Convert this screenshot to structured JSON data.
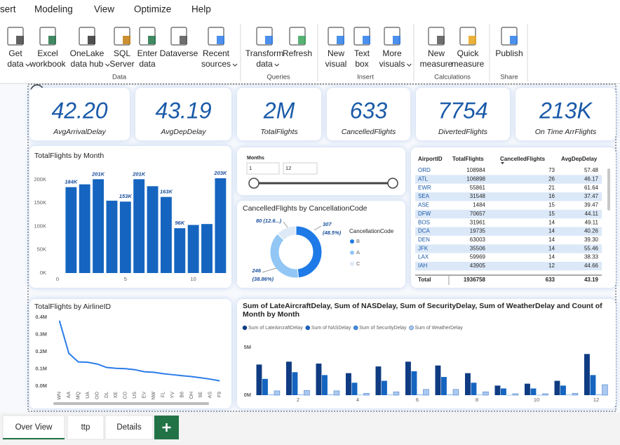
{
  "ribbon": {
    "tabs": [
      "sert",
      "Modeling",
      "View",
      "Optimize",
      "Help"
    ],
    "groups": [
      {
        "label": "Data",
        "buttons": [
          {
            "lines": [
              "Get",
              "data"
            ],
            "dropdown": true
          },
          {
            "lines": [
              "Excel",
              "workbook"
            ],
            "dropdown": false
          },
          {
            "lines": [
              "OneLake",
              "data hub"
            ],
            "dropdown": true
          },
          {
            "lines": [
              "SQL",
              "Server"
            ],
            "dropdown": false
          },
          {
            "lines": [
              "Enter",
              "data"
            ],
            "dropdown": false
          },
          {
            "lines": [
              "Dataverse"
            ],
            "dropdown": false
          },
          {
            "lines": [
              "Recent",
              "sources"
            ],
            "dropdown": true
          }
        ]
      },
      {
        "label": "Queries",
        "buttons": [
          {
            "lines": [
              "Transform",
              "data"
            ],
            "dropdown": true
          },
          {
            "lines": [
              "Refresh"
            ],
            "dropdown": false
          }
        ]
      },
      {
        "label": "Insert",
        "buttons": [
          {
            "lines": [
              "New",
              "visual"
            ],
            "dropdown": false
          },
          {
            "lines": [
              "Text",
              "box"
            ],
            "dropdown": false
          },
          {
            "lines": [
              "More",
              "visuals"
            ],
            "dropdown": true
          }
        ]
      },
      {
        "label": "Calculations",
        "buttons": [
          {
            "lines": [
              "New",
              "measure"
            ],
            "dropdown": false
          },
          {
            "lines": [
              "Quick",
              "measure"
            ],
            "dropdown": false
          }
        ]
      },
      {
        "label": "Share",
        "buttons": [
          {
            "lines": [
              "Publish"
            ],
            "dropdown": false
          }
        ]
      }
    ]
  },
  "cards": [
    {
      "value": "42.20",
      "label": "AvgArrivalDelay"
    },
    {
      "value": "43.19",
      "label": "AvgDepDelay"
    },
    {
      "value": "2M",
      "label": "TotalFlights"
    },
    {
      "value": "633",
      "label": "CancelledFlights"
    },
    {
      "value": "7754",
      "label": "DivertedFlights"
    },
    {
      "value": "213K",
      "label": "On Time ArrFlights"
    }
  ],
  "month_chart": {
    "type": "bar",
    "title": "TotalFlights by Month",
    "x": [
      1,
      2,
      3,
      4,
      5,
      6,
      7,
      8,
      9,
      10,
      11,
      12
    ],
    "values": [
      184000,
      190000,
      201000,
      155000,
      153000,
      201000,
      186000,
      163000,
      96000,
      103000,
      105000,
      203000
    ],
    "value_labels": [
      "184K",
      null,
      "201K",
      null,
      "153K",
      "201K",
      null,
      "163K",
      "96K",
      null,
      null,
      "203K"
    ],
    "color": "#1565c0",
    "xlim": [
      0,
      12.6
    ],
    "xticks": [
      0,
      5,
      10
    ],
    "ylim": [
      0,
      215000
    ],
    "yticks": [
      {
        "value": 0,
        "label": "0K"
      },
      {
        "value": 50000,
        "label": "50K"
      },
      {
        "value": 100000,
        "label": "100K"
      },
      {
        "value": 150000,
        "label": "150K"
      },
      {
        "value": 200000,
        "label": "200K"
      }
    ]
  },
  "slicer": {
    "title": "Months",
    "from": 1,
    "to": 12
  },
  "cancel_chart": {
    "type": "donut",
    "title": "CancelledFlights by CancellationCode",
    "legend_title": "CancellationCode",
    "categories": [
      "B",
      "A",
      "C"
    ],
    "values": [
      307,
      246,
      80
    ],
    "value_labels": [
      "307",
      "246",
      "80 (12.6...)"
    ],
    "percent_labels": [
      "(48.5%)",
      "(38.86%)",
      null
    ],
    "colors": [
      "#1e7ae6",
      "#92c6f5",
      "#dde9f6"
    ]
  },
  "table": {
    "columns": [
      "AirportID",
      "TotalFlights",
      "CancelledFlights",
      "AvgDepDelay"
    ],
    "rows": [
      [
        "ORD",
        "108984",
        "73",
        "57.48"
      ],
      [
        "ATL",
        "106898",
        "26",
        "46.17"
      ],
      [
        "EWR",
        "55861",
        "21",
        "61.64"
      ],
      [
        "SEA",
        "31548",
        "16",
        "37.47"
      ],
      [
        "ASE",
        "1484",
        "15",
        "39.47"
      ],
      [
        "DFW",
        "70657",
        "15",
        "44.11"
      ],
      [
        "BOS",
        "31961",
        "14",
        "49.11"
      ],
      [
        "DCA",
        "19735",
        "14",
        "40.26"
      ],
      [
        "DEN",
        "63003",
        "14",
        "39.30"
      ],
      [
        "JFK",
        "35506",
        "14",
        "55.46"
      ],
      [
        "LAX",
        "59969",
        "14",
        "38.33"
      ],
      [
        "IAH",
        "43905",
        "12",
        "44.66"
      ]
    ],
    "total": [
      "Total",
      "1936758",
      "633",
      "43.19"
    ]
  },
  "airline_chart": {
    "type": "line",
    "title": "TotalFlights by AirlineID",
    "categories": [
      "WN",
      "AA",
      "MQ",
      "UA",
      "OO",
      "DL",
      "XE",
      "CO",
      "US",
      "EV",
      "NW",
      "FL",
      "YV",
      "B6",
      "OH",
      "9E",
      "AS",
      "F9"
    ],
    "values": [
      380000,
      190000,
      140000,
      138000,
      128000,
      108000,
      103000,
      101000,
      95000,
      83000,
      80000,
      72000,
      66000,
      60000,
      55000,
      48000,
      40000,
      30000
    ],
    "color": "#2b7de9",
    "ylim": [
      0,
      420000
    ],
    "yticks": [
      {
        "value": 0,
        "label": "0.0M"
      },
      {
        "value": 100000,
        "label": "0.1M"
      },
      {
        "value": 200000,
        "label": "0.2M"
      },
      {
        "value": 300000,
        "label": "0.3M"
      },
      {
        "value": 400000,
        "label": "0.4M"
      }
    ]
  },
  "delay_chart": {
    "type": "bar",
    "title": "Sum of LateAircraftDelay, Sum of NASDelay, Sum of SecurityDelay, Sum of WeatherDelay and Count of Month by Month",
    "x": [
      1,
      2,
      3,
      4,
      5,
      6,
      7,
      8,
      9,
      10,
      11,
      12
    ],
    "xlim": [
      0.4,
      12.6
    ],
    "xticks": [
      2,
      4,
      6,
      8,
      10,
      12
    ],
    "ylim": [
      0,
      5500000
    ],
    "yticks": [
      {
        "value": 0,
        "label": "0M"
      },
      {
        "value": 5000000,
        "label": "5M"
      }
    ],
    "series": [
      {
        "name": "Sum of LateAircraftDelay",
        "color": "#0f3b82",
        "values": [
          3200000,
          3500000,
          3300000,
          2300000,
          3000000,
          3500000,
          3100000,
          2300000,
          1000000,
          1200000,
          1500000,
          4300000
        ]
      },
      {
        "name": "Sum of NASDelay",
        "color": "#1565c0",
        "values": [
          1700000,
          2400000,
          2100000,
          1300000,
          1500000,
          2500000,
          1900000,
          1300000,
          700000,
          700000,
          1000000,
          2100000
        ]
      },
      {
        "name": "Sum of SecurityDelay",
        "color": "#3f8fe5",
        "values": [
          50000,
          50000,
          50000,
          30000,
          40000,
          50000,
          50000,
          40000,
          20000,
          20000,
          30000,
          50000
        ]
      },
      {
        "name": "Sum of WeatherDelay",
        "color": "#aac9f0",
        "values": [
          450000,
          500000,
          450000,
          200000,
          350000,
          600000,
          600000,
          350000,
          150000,
          150000,
          200000,
          1100000
        ]
      }
    ]
  },
  "page_tabs": [
    "Over View",
    "ttp",
    "Details"
  ]
}
